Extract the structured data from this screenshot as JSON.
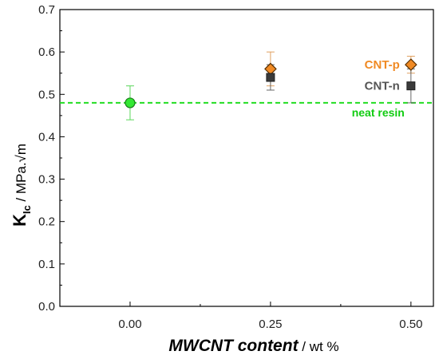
{
  "chart_data": {
    "type": "scatter",
    "ylabel": {
      "main": "K",
      "subscript": "Ic",
      "unit": " / MPa.√m"
    },
    "xlabel": {
      "main": "MWCNT content",
      "unit": " / wt %"
    },
    "xlim": [
      -0.125,
      0.54
    ],
    "ylim": [
      0.0,
      0.7
    ],
    "xticks": [
      0.0,
      0.25,
      0.5
    ],
    "xtick_labels": [
      "0.00",
      "0.25",
      "0.50"
    ],
    "yticks": [
      0.0,
      0.1,
      0.2,
      0.3,
      0.4,
      0.5,
      0.6,
      0.7
    ],
    "ytick_labels": [
      "0.0",
      "0.1",
      "0.2",
      "0.3",
      "0.4",
      "0.5",
      "0.6",
      "0.7"
    ],
    "series": [
      {
        "name": "neat resin",
        "marker": "circle",
        "color": "#33e833",
        "edge_color": "#1a7a1a",
        "points": [
          {
            "x": 0.0,
            "y": 0.48,
            "err_low": 0.44,
            "err_high": 0.52
          }
        ]
      },
      {
        "name": "CNT-p",
        "marker": "diamond",
        "color": "#f08a24",
        "edge_color": "#5a3000",
        "points": [
          {
            "x": 0.25,
            "y": 0.56,
            "err_low": 0.52,
            "err_high": 0.6
          },
          {
            "x": 0.5,
            "y": 0.57,
            "err_low": 0.55,
            "err_high": 0.59
          }
        ]
      },
      {
        "name": "CNT-n",
        "marker": "square",
        "color": "#3a3a3a",
        "edge_color": "#222222",
        "points": [
          {
            "x": 0.25,
            "y": 0.54,
            "err_low": 0.51,
            "err_high": 0.57
          },
          {
            "x": 0.5,
            "y": 0.52,
            "err_low": 0.48,
            "err_high": 0.56
          }
        ]
      }
    ],
    "reference_line": {
      "label": "neat resin",
      "y": 0.48,
      "color": "#22dd22",
      "style": "dashed"
    },
    "legend": [
      {
        "label": "CNT-p",
        "color": "#f08a24"
      },
      {
        "label": "CNT-n",
        "color": "#555555"
      }
    ],
    "legend_placement": "right",
    "grid": false
  }
}
